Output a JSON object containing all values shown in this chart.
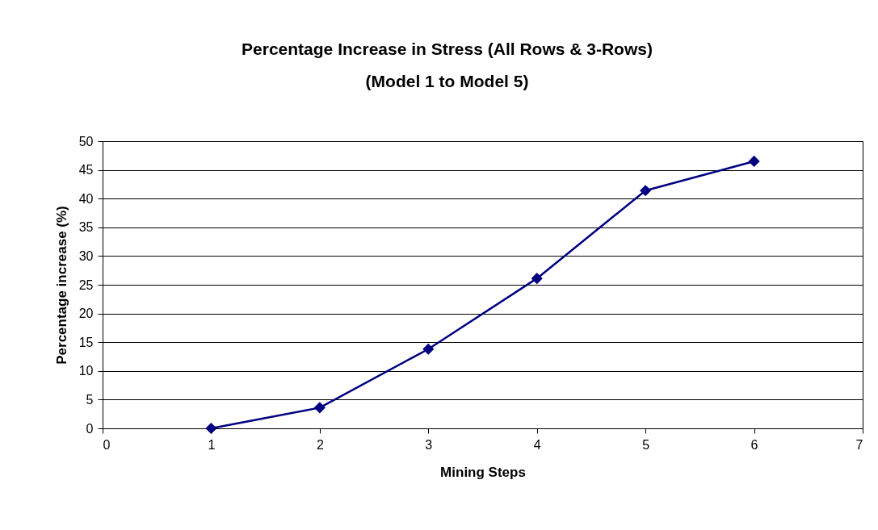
{
  "chart_data": {
    "type": "line",
    "title": "Percentage Increase in Stress (All Rows & 3-Rows)\n(Model 1 to Model 5)",
    "xlabel": "Mining Steps",
    "ylabel": "Percentage increase (%)",
    "x": [
      1,
      2,
      3,
      4,
      5,
      6
    ],
    "series": [
      {
        "color": "#000080",
        "values": [
          0,
          3.6,
          13.8,
          26.1,
          41.4,
          46.5
        ]
      }
    ],
    "xlim": [
      0,
      7
    ],
    "xticks": [
      0,
      1,
      2,
      3,
      4,
      5,
      6,
      7
    ],
    "ylim": [
      0,
      50
    ],
    "yticks": [
      0,
      5,
      10,
      15,
      20,
      25,
      30,
      35,
      40,
      45,
      50
    ],
    "grid": "y",
    "marker": "diamond",
    "line_style": "solid"
  }
}
